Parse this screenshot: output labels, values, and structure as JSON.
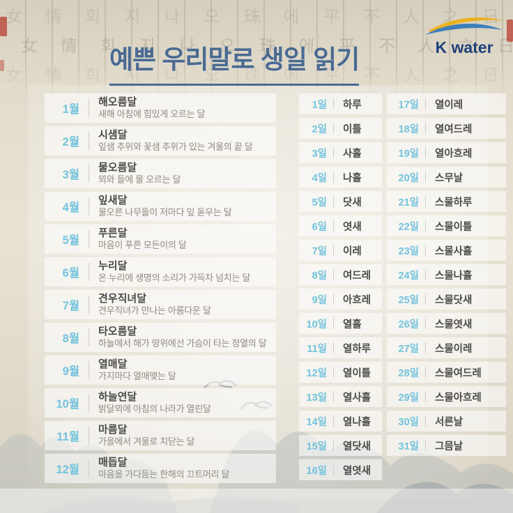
{
  "header": {
    "title": "예쁜 우리말로 생일 읽기",
    "logo_text": "K water"
  },
  "months": {
    "items": [
      {
        "label": "1월",
        "name": "해오름달",
        "desc": "새해 아침에 힘있게 오르는 달"
      },
      {
        "label": "2월",
        "name": "시샘달",
        "desc": "잎샘 추위와 꽃샘 추위가 있는 겨울의 끝 달"
      },
      {
        "label": "3월",
        "name": "물오름달",
        "desc": "뫼와 들에 물 오르는 달"
      },
      {
        "label": "4월",
        "name": "잎새달",
        "desc": "물오른 나무들이 저마다 잎 돋우는 달"
      },
      {
        "label": "5월",
        "name": "푸른달",
        "desc": "마음이 푸른 모든이의 달"
      },
      {
        "label": "6월",
        "name": "누리달",
        "desc": "온 누리에 생명의 소리가 가득차 넘치는 달"
      },
      {
        "label": "7월",
        "name": "견우직녀달",
        "desc": "견우직녀가 만나는 아름다운 달"
      },
      {
        "label": "8월",
        "name": "타오름달",
        "desc": "하늘에서 해가 땅위에선 가슴이 타는 정열의 달"
      },
      {
        "label": "9월",
        "name": "열매달",
        "desc": "가지마다 열매맺는 달"
      },
      {
        "label": "10월",
        "name": "하늘연달",
        "desc": "밝달뫼에 아침의 나라가 열린달"
      },
      {
        "label": "11월",
        "name": "마름달",
        "desc": "가을에서 겨울로 치닫는 달"
      },
      {
        "label": "12월",
        "name": "매듭달",
        "desc": "마음을 가다듬는 한해의 끄트머리 달"
      }
    ]
  },
  "days_left": {
    "items": [
      {
        "label": "1일",
        "name": "하루"
      },
      {
        "label": "2일",
        "name": "이틀"
      },
      {
        "label": "3일",
        "name": "사흘"
      },
      {
        "label": "4일",
        "name": "나흘"
      },
      {
        "label": "5일",
        "name": "닷새"
      },
      {
        "label": "6일",
        "name": "엿새"
      },
      {
        "label": "7일",
        "name": "이레"
      },
      {
        "label": "8일",
        "name": "여드레"
      },
      {
        "label": "9일",
        "name": "아흐레"
      },
      {
        "label": "10일",
        "name": "열흘"
      },
      {
        "label": "11일",
        "name": "열하루"
      },
      {
        "label": "12일",
        "name": "열이틀"
      },
      {
        "label": "13일",
        "name": "열사흘"
      },
      {
        "label": "14일",
        "name": "열나흘"
      },
      {
        "label": "15일",
        "name": "열닷새"
      },
      {
        "label": "16일",
        "name": "열엿새"
      }
    ]
  },
  "days_right": {
    "items": [
      {
        "label": "17일",
        "name": "열이레"
      },
      {
        "label": "18일",
        "name": "열여드레"
      },
      {
        "label": "19일",
        "name": "열아흐레"
      },
      {
        "label": "20일",
        "name": "스무날"
      },
      {
        "label": "21일",
        "name": "스물하루"
      },
      {
        "label": "22일",
        "name": "스물이틀"
      },
      {
        "label": "23일",
        "name": "스물사흘"
      },
      {
        "label": "24일",
        "name": "스물나흘"
      },
      {
        "label": "25일",
        "name": "스물닷새"
      },
      {
        "label": "26일",
        "name": "스물엿새"
      },
      {
        "label": "27일",
        "name": "스물이레"
      },
      {
        "label": "28일",
        "name": "스물여드레"
      },
      {
        "label": "29일",
        "name": "스물아흐레"
      },
      {
        "label": "30일",
        "name": "서른날"
      },
      {
        "label": "31일",
        "name": "그믐날"
      }
    ]
  },
  "background_glyphs": [
    "女",
    "情",
    "회",
    "지",
    "나",
    "오",
    "珠",
    "에",
    "平",
    "不",
    "人",
    "之",
    "日"
  ],
  "colors": {
    "accent_blue": "#72c3dd",
    "title_blue": "#4a6a91",
    "logo_navy": "#21417d",
    "swoosh_yellow": "#edb11f",
    "swoosh_blue": "#3e7fba",
    "name_dark": "#4b4a46",
    "desc_gray": "#8e8b81",
    "seal_red": "#ba3e30"
  }
}
